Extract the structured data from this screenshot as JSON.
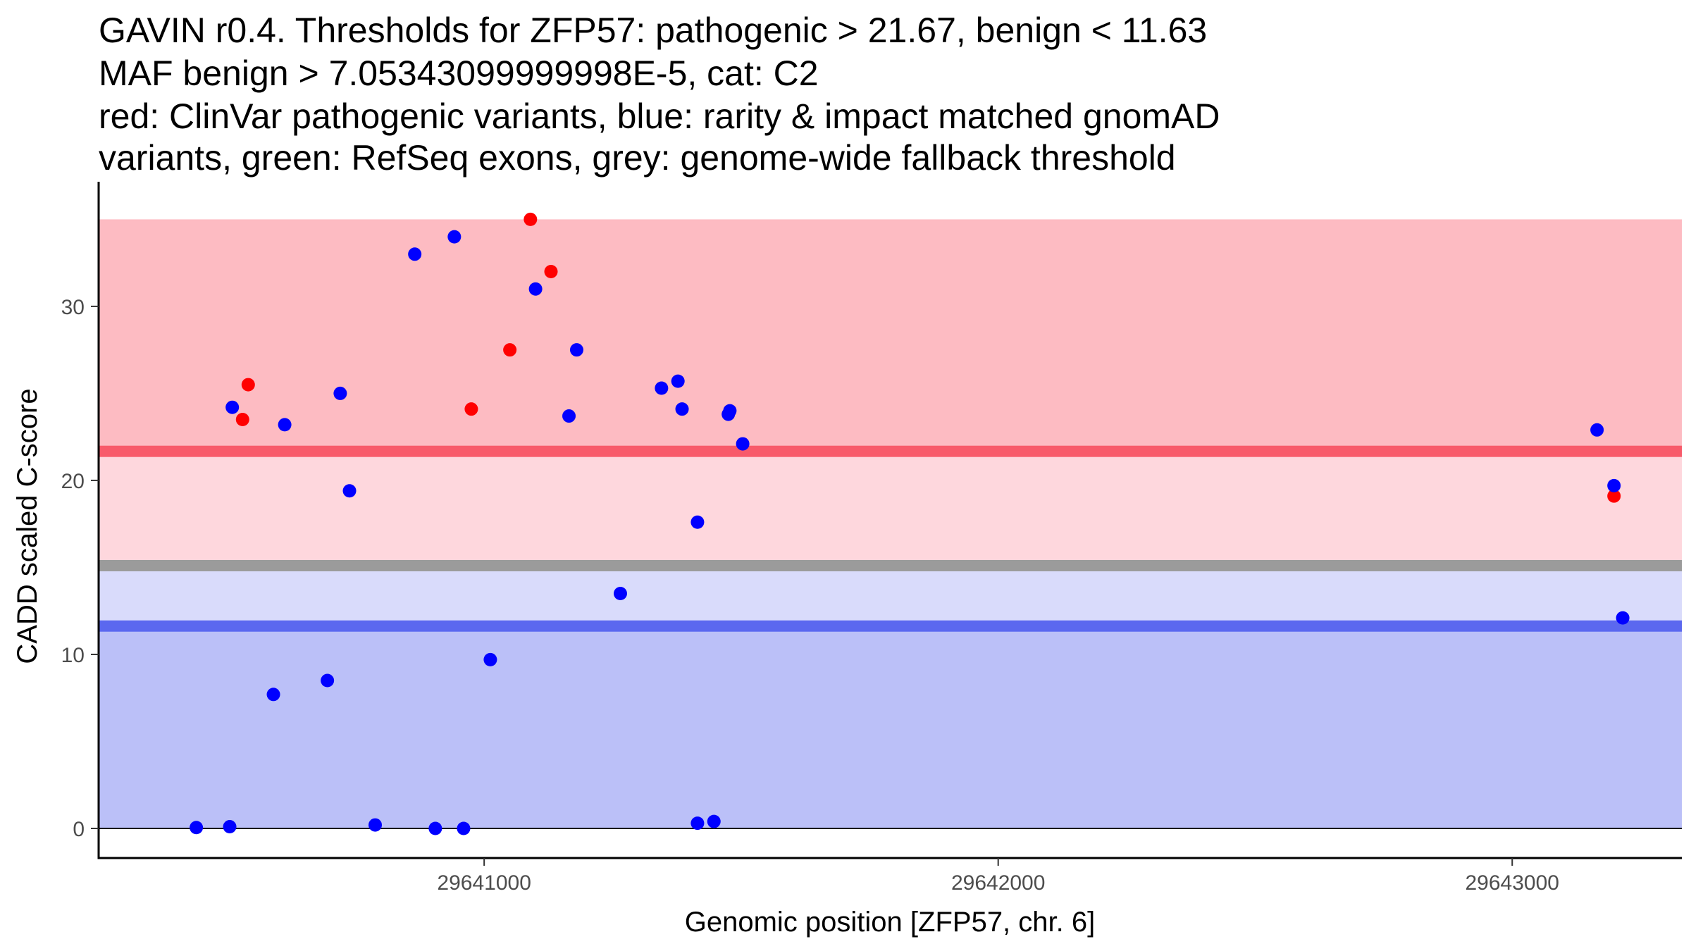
{
  "chart_data": {
    "type": "scatter",
    "title_lines": [
      "GAVIN r0.4. Thresholds for ZFP57: pathogenic > 21.67, benign < 11.63",
      "MAF benign > 7.05343099999998E-5, cat: C2",
      "red: ClinVar pathogenic variants, blue: rarity & impact matched gnomAD",
      "variants, green: RefSeq exons, grey: genome-wide fallback threshold"
    ],
    "xlabel": "Genomic position [ZFP57, chr. 6]",
    "ylabel": "CADD scaled C-score",
    "xlim": [
      29640250,
      29643330
    ],
    "ylim": [
      -1.7,
      37.0
    ],
    "x_ticks": [
      29641000,
      29642000,
      29643000
    ],
    "x_tick_labels": [
      "29641000",
      "29642000",
      "29643000"
    ],
    "y_ticks": [
      0,
      10,
      20,
      30
    ],
    "y_tick_labels": [
      "0",
      "10",
      "20",
      "30"
    ],
    "bands": [
      {
        "name": "pathogenic-region",
        "y0": 21.67,
        "y1": 35.0,
        "color": "#fdbbc2"
      },
      {
        "name": "intermediate-pathogenic-region",
        "y0": 15.0,
        "y1": 21.67,
        "color": "#fed7dd"
      },
      {
        "name": "intermediate-benign-region",
        "y0": 11.63,
        "y1": 15.0,
        "color": "#d9dbfb"
      },
      {
        "name": "benign-region",
        "y0": 0.0,
        "y1": 11.63,
        "color": "#bbc0f8"
      }
    ],
    "threshold_lines": [
      {
        "name": "pathogenic-threshold-line",
        "y": 21.67,
        "color": "#f85a6a"
      },
      {
        "name": "fallback-threshold-line",
        "y": 15.1,
        "color": "#9b9b9b"
      },
      {
        "name": "benign-threshold-line",
        "y": 11.63,
        "color": "#5b68ef"
      }
    ],
    "series": [
      {
        "name": "ClinVar pathogenic",
        "color": "#ff0000",
        "points": [
          {
            "x": 29640530,
            "y": 23.5
          },
          {
            "x": 29640541,
            "y": 25.5
          },
          {
            "x": 29640975,
            "y": 24.1
          },
          {
            "x": 29641050,
            "y": 27.5
          },
          {
            "x": 29641090,
            "y": 35.0
          },
          {
            "x": 29641130,
            "y": 32.0
          },
          {
            "x": 29643198,
            "y": 19.1
          }
        ]
      },
      {
        "name": "gnomAD matched",
        "color": "#0000ff",
        "points": [
          {
            "x": 29640510,
            "y": 24.2
          },
          {
            "x": 29640612,
            "y": 23.2
          },
          {
            "x": 29640720,
            "y": 25.0
          },
          {
            "x": 29640738,
            "y": 19.4
          },
          {
            "x": 29640865,
            "y": 33.0
          },
          {
            "x": 29640942,
            "y": 34.0
          },
          {
            "x": 29641100,
            "y": 31.0
          },
          {
            "x": 29641165,
            "y": 23.7
          },
          {
            "x": 29641180,
            "y": 27.5
          },
          {
            "x": 29641345,
            "y": 25.3
          },
          {
            "x": 29641377,
            "y": 25.7
          },
          {
            "x": 29641385,
            "y": 24.1
          },
          {
            "x": 29641475,
            "y": 23.8
          },
          {
            "x": 29641478,
            "y": 24.0
          },
          {
            "x": 29641503,
            "y": 22.1
          },
          {
            "x": 29641415,
            "y": 17.6
          },
          {
            "x": 29641265,
            "y": 13.5
          },
          {
            "x": 29641012,
            "y": 9.7
          },
          {
            "x": 29640695,
            "y": 8.5
          },
          {
            "x": 29640590,
            "y": 7.7
          },
          {
            "x": 29640440,
            "y": 0.05
          },
          {
            "x": 29640505,
            "y": 0.1
          },
          {
            "x": 29640788,
            "y": 0.2
          },
          {
            "x": 29640905,
            "y": 0.0
          },
          {
            "x": 29640960,
            "y": 0.0
          },
          {
            "x": 29641415,
            "y": 0.3
          },
          {
            "x": 29641447,
            "y": 0.4
          },
          {
            "x": 29643165,
            "y": 22.9
          },
          {
            "x": 29643198,
            "y": 19.7
          },
          {
            "x": 29643215,
            "y": 12.1
          }
        ]
      }
    ]
  }
}
